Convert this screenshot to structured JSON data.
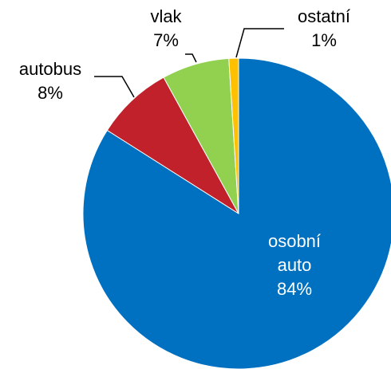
{
  "chart_data": {
    "type": "pie",
    "categories": [
      "osobní auto",
      "autobus",
      "vlak",
      "ostatní"
    ],
    "values": [
      84,
      8,
      7,
      1
    ],
    "value_labels": [
      "84%",
      "8%",
      "7%",
      "1%"
    ],
    "colors": [
      "#0070c0",
      "#c0212b",
      "#92d050",
      "#ffc000"
    ]
  }
}
